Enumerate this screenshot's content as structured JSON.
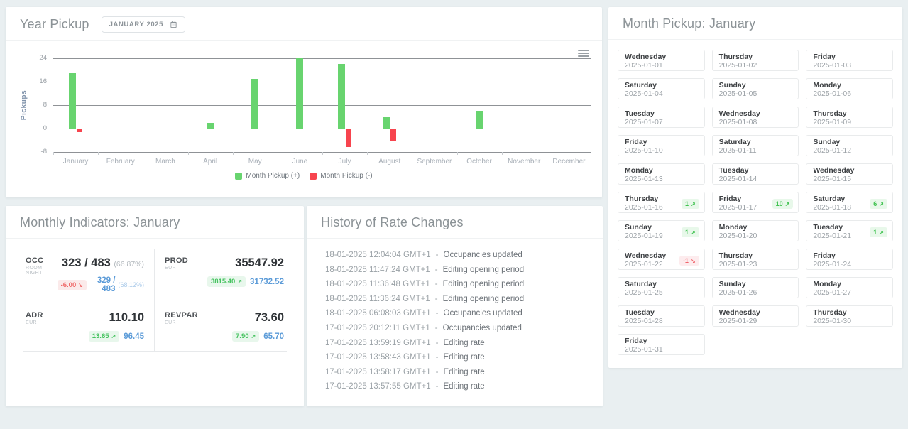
{
  "colors": {
    "positive_green": "#68d46f",
    "negative_red": "#f7444e",
    "badge_green_text": "#3fc24f",
    "badge_green_bg": "#e8f8ea",
    "badge_red_text": "#f0656c",
    "badge_red_bg": "#fdecee",
    "previous_value_blue": "#5b9bd8",
    "page_background": "#e9eff1"
  },
  "year_pickup": {
    "title": "Year Pickup",
    "date_selector": "JANUARY 2025"
  },
  "chart_data": {
    "type": "bar",
    "title": "Year Pickup",
    "ylabel": "Pickups",
    "ylim": [
      -8,
      24
    ],
    "yticks": [
      24,
      16,
      8,
      0,
      -8
    ],
    "grid": true,
    "legend_position": "bottom",
    "categories": [
      "January",
      "February",
      "March",
      "April",
      "May",
      "June",
      "July",
      "August",
      "September",
      "October",
      "November",
      "December"
    ],
    "series": [
      {
        "name": "Month Pickup (+)",
        "color": "#68d46f",
        "values": [
          19,
          0,
          0,
          2,
          17,
          24,
          22,
          4,
          0,
          6,
          0,
          0
        ]
      },
      {
        "name": "Month Pickup (-)",
        "color": "#f7444e",
        "values": [
          -1,
          0,
          0,
          0,
          0,
          0,
          -6,
          -4,
          0,
          0,
          0,
          0
        ]
      }
    ]
  },
  "month_pickup": {
    "title": "Month Pickup: January",
    "days": [
      {
        "day": "Wednesday",
        "date": "2025-01-01",
        "pickup": null
      },
      {
        "day": "Thursday",
        "date": "2025-01-02",
        "pickup": null
      },
      {
        "day": "Friday",
        "date": "2025-01-03",
        "pickup": null
      },
      {
        "day": "Saturday",
        "date": "2025-01-04",
        "pickup": null
      },
      {
        "day": "Sunday",
        "date": "2025-01-05",
        "pickup": null
      },
      {
        "day": "Monday",
        "date": "2025-01-06",
        "pickup": null
      },
      {
        "day": "Tuesday",
        "date": "2025-01-07",
        "pickup": null
      },
      {
        "day": "Wednesday",
        "date": "2025-01-08",
        "pickup": null
      },
      {
        "day": "Thursday",
        "date": "2025-01-09",
        "pickup": null
      },
      {
        "day": "Friday",
        "date": "2025-01-10",
        "pickup": null
      },
      {
        "day": "Saturday",
        "date": "2025-01-11",
        "pickup": null
      },
      {
        "day": "Sunday",
        "date": "2025-01-12",
        "pickup": null
      },
      {
        "day": "Monday",
        "date": "2025-01-13",
        "pickup": null
      },
      {
        "day": "Tuesday",
        "date": "2025-01-14",
        "pickup": null
      },
      {
        "day": "Wednesday",
        "date": "2025-01-15",
        "pickup": null
      },
      {
        "day": "Thursday",
        "date": "2025-01-16",
        "pickup": 1
      },
      {
        "day": "Friday",
        "date": "2025-01-17",
        "pickup": 10
      },
      {
        "day": "Saturday",
        "date": "2025-01-18",
        "pickup": 6
      },
      {
        "day": "Sunday",
        "date": "2025-01-19",
        "pickup": 1
      },
      {
        "day": "Monday",
        "date": "2025-01-20",
        "pickup": null
      },
      {
        "day": "Tuesday",
        "date": "2025-01-21",
        "pickup": 1
      },
      {
        "day": "Wednesday",
        "date": "2025-01-22",
        "pickup": -1
      },
      {
        "day": "Thursday",
        "date": "2025-01-23",
        "pickup": null
      },
      {
        "day": "Friday",
        "date": "2025-01-24",
        "pickup": null
      },
      {
        "day": "Saturday",
        "date": "2025-01-25",
        "pickup": null
      },
      {
        "day": "Sunday",
        "date": "2025-01-26",
        "pickup": null
      },
      {
        "day": "Monday",
        "date": "2025-01-27",
        "pickup": null
      },
      {
        "day": "Tuesday",
        "date": "2025-01-28",
        "pickup": null
      },
      {
        "day": "Wednesday",
        "date": "2025-01-29",
        "pickup": null
      },
      {
        "day": "Thursday",
        "date": "2025-01-30",
        "pickup": null
      },
      {
        "day": "Friday",
        "date": "2025-01-31",
        "pickup": null
      }
    ]
  },
  "indicators": {
    "title": "Monthly Indicators: January",
    "metrics": [
      {
        "label": "OCC",
        "sublabel": "ROOM NIGHT",
        "value": "323 / 483",
        "value_suffix": "(66.87%)",
        "delta": "-6.00",
        "delta_dir": "down",
        "prev": "329 / 483",
        "prev_suffix": "(68.12%)"
      },
      {
        "label": "PROD",
        "sublabel": "EUR",
        "value": "35547.92",
        "value_suffix": "",
        "delta": "3815.40",
        "delta_dir": "up",
        "prev": "31732.52",
        "prev_suffix": ""
      },
      {
        "label": "ADR",
        "sublabel": "EUR",
        "value": "110.10",
        "value_suffix": "",
        "delta": "13.65",
        "delta_dir": "up",
        "prev": "96.45",
        "prev_suffix": ""
      },
      {
        "label": "REVPAR",
        "sublabel": "EUR",
        "value": "73.60",
        "value_suffix": "",
        "delta": "7.90",
        "delta_dir": "up",
        "prev": "65.70",
        "prev_suffix": ""
      }
    ]
  },
  "history": {
    "title": "History of Rate Changes",
    "entries": [
      {
        "time": "18-01-2025 12:04:04 GMT+1",
        "action": "Occupancies updated"
      },
      {
        "time": "18-01-2025 11:47:24 GMT+1",
        "action": "Editing opening period"
      },
      {
        "time": "18-01-2025 11:36:48 GMT+1",
        "action": "Editing opening period"
      },
      {
        "time": "18-01-2025 11:36:24 GMT+1",
        "action": "Editing opening period"
      },
      {
        "time": "18-01-2025 06:08:03 GMT+1",
        "action": "Occupancies updated"
      },
      {
        "time": "17-01-2025 20:12:11 GMT+1",
        "action": "Occupancies updated"
      },
      {
        "time": "17-01-2025 13:59:19 GMT+1",
        "action": "Editing rate"
      },
      {
        "time": "17-01-2025 13:58:43 GMT+1",
        "action": "Editing rate"
      },
      {
        "time": "17-01-2025 13:58:17 GMT+1",
        "action": "Editing rate"
      },
      {
        "time": "17-01-2025 13:57:55 GMT+1",
        "action": "Editing rate"
      }
    ]
  }
}
